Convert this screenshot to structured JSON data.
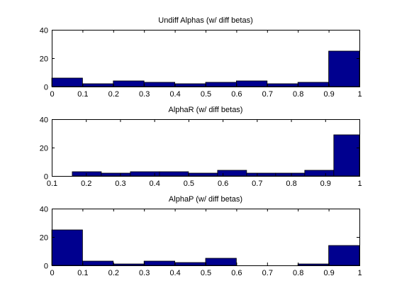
{
  "figure": {
    "background": "#ffffff"
  },
  "chart_data": [
    {
      "type": "bar",
      "title": "Undiff Alphas (w/ diff betas)",
      "xlabel": "",
      "ylabel": "",
      "xlim": [
        0,
        1
      ],
      "ylim": [
        0,
        40
      ],
      "xticks": [
        "0",
        "0.1",
        "0.2",
        "0.3",
        "0.4",
        "0.5",
        "0.6",
        "0.7",
        "0.8",
        "0.9",
        "1"
      ],
      "xtick_values": [
        0,
        0.1,
        0.2,
        0.3,
        0.4,
        0.5,
        0.6,
        0.7,
        0.8,
        0.9,
        1
      ],
      "yticks": [
        "0",
        "20",
        "40"
      ],
      "ytick_values": [
        0,
        20,
        40
      ],
      "bar_color": "#00008f",
      "bins": [
        {
          "x0": 0.0,
          "x1": 0.1,
          "value": 6
        },
        {
          "x0": 0.1,
          "x1": 0.2,
          "value": 2
        },
        {
          "x0": 0.2,
          "x1": 0.3,
          "value": 4
        },
        {
          "x0": 0.3,
          "x1": 0.4,
          "value": 3
        },
        {
          "x0": 0.4,
          "x1": 0.5,
          "value": 2
        },
        {
          "x0": 0.5,
          "x1": 0.6,
          "value": 3
        },
        {
          "x0": 0.6,
          "x1": 0.7,
          "value": 4
        },
        {
          "x0": 0.7,
          "x1": 0.8,
          "value": 2
        },
        {
          "x0": 0.8,
          "x1": 0.9,
          "value": 3
        },
        {
          "x0": 0.9,
          "x1": 1.0,
          "value": 25
        }
      ]
    },
    {
      "type": "bar",
      "title": "AlphaR (w/ diff betas)",
      "xlabel": "",
      "ylabel": "",
      "xlim": [
        0.1,
        1
      ],
      "ylim": [
        0,
        40
      ],
      "xticks": [
        "0.1",
        "0.2",
        "0.3",
        "0.4",
        "0.5",
        "0.6",
        "0.7",
        "0.8",
        "0.9",
        "1"
      ],
      "xtick_values": [
        0.1,
        0.2,
        0.3,
        0.4,
        0.5,
        0.6,
        0.7,
        0.8,
        0.9,
        1
      ],
      "yticks": [
        "0",
        "20",
        "40"
      ],
      "ytick_values": [
        0,
        20,
        40
      ],
      "bar_color": "#00008f",
      "bins": [
        {
          "x0": 0.16,
          "x1": 0.245,
          "value": 3
        },
        {
          "x0": 0.245,
          "x1": 0.33,
          "value": 2
        },
        {
          "x0": 0.33,
          "x1": 0.415,
          "value": 3
        },
        {
          "x0": 0.415,
          "x1": 0.5,
          "value": 3
        },
        {
          "x0": 0.5,
          "x1": 0.585,
          "value": 2
        },
        {
          "x0": 0.585,
          "x1": 0.67,
          "value": 4
        },
        {
          "x0": 0.67,
          "x1": 0.755,
          "value": 2
        },
        {
          "x0": 0.755,
          "x1": 0.84,
          "value": 2
        },
        {
          "x0": 0.84,
          "x1": 0.925,
          "value": 4
        },
        {
          "x0": 0.925,
          "x1": 1.0,
          "value": 29
        }
      ]
    },
    {
      "type": "bar",
      "title": "AlphaP (w/ diff betas)",
      "xlabel": "",
      "ylabel": "",
      "xlim": [
        0,
        1
      ],
      "ylim": [
        0,
        40
      ],
      "xticks": [
        "0",
        "0.1",
        "0.2",
        "0.3",
        "0.4",
        "0.5",
        "0.6",
        "0.7",
        "0.8",
        "0.9",
        "1"
      ],
      "xtick_values": [
        0,
        0.1,
        0.2,
        0.3,
        0.4,
        0.5,
        0.6,
        0.7,
        0.8,
        0.9,
        1
      ],
      "yticks": [
        "0",
        "20",
        "40"
      ],
      "ytick_values": [
        0,
        20,
        40
      ],
      "bar_color": "#00008f",
      "bins": [
        {
          "x0": 0.0,
          "x1": 0.1,
          "value": 25
        },
        {
          "x0": 0.1,
          "x1": 0.2,
          "value": 3
        },
        {
          "x0": 0.2,
          "x1": 0.3,
          "value": 1
        },
        {
          "x0": 0.3,
          "x1": 0.4,
          "value": 3
        },
        {
          "x0": 0.4,
          "x1": 0.5,
          "value": 2
        },
        {
          "x0": 0.5,
          "x1": 0.6,
          "value": 5
        },
        {
          "x0": 0.6,
          "x1": 0.7,
          "value": 0
        },
        {
          "x0": 0.7,
          "x1": 0.8,
          "value": 0
        },
        {
          "x0": 0.8,
          "x1": 0.9,
          "value": 1
        },
        {
          "x0": 0.9,
          "x1": 1.0,
          "value": 14
        }
      ]
    }
  ]
}
